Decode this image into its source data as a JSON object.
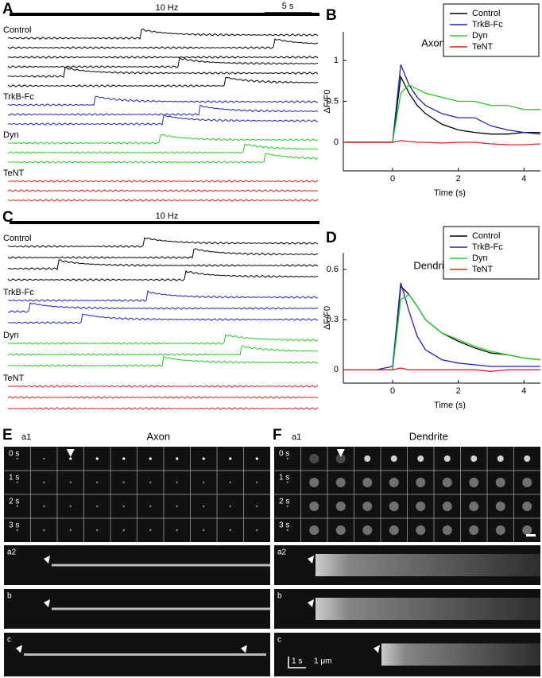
{
  "panels": {
    "A": {
      "label": "A",
      "stim": "10 Hz",
      "scale": "5 s",
      "groups": [
        {
          "name": "Control",
          "color": "#000000",
          "spikes": [
            0.43,
            0.86,
            null,
            0.55,
            0.18,
            0.7
          ]
        },
        {
          "name": "TrkB-Fc",
          "color": "#2020c0",
          "spikes": [
            0.28,
            0.62,
            0.5
          ]
        },
        {
          "name": "Dyn",
          "color": "#20d020",
          "spikes": [
            0.49,
            0.76,
            0.83
          ]
        },
        {
          "name": "TeNT",
          "color": "#e02020",
          "spikes": [
            null,
            null,
            null
          ]
        }
      ]
    },
    "C": {
      "label": "C",
      "stim": "10 Hz",
      "groups": [
        {
          "name": "Control",
          "color": "#000000",
          "spikes": [
            0.44,
            0.6,
            0.16,
            0.57
          ]
        },
        {
          "name": "TrkB-Fc",
          "color": "#2020c0",
          "spikes": [
            0.45,
            0.07,
            0.24
          ]
        },
        {
          "name": "Dyn",
          "color": "#20d020",
          "spikes": [
            0.7,
            0.75,
            0.5
          ]
        },
        {
          "name": "TeNT",
          "color": "#e02020",
          "spikes": [
            null,
            null,
            null
          ]
        }
      ]
    },
    "E": {
      "label": "E",
      "sub": "a1",
      "title": "Axon",
      "rows": [
        "0 s",
        "1 s",
        "2 s",
        "3 s"
      ],
      "strips": [
        "a2",
        "b",
        "c"
      ]
    },
    "F": {
      "label": "F",
      "sub": "a1",
      "title": "Dendrite",
      "rows": [
        "0 s",
        "1 s",
        "2 s",
        "3 s"
      ],
      "strips": [
        "a2",
        "b",
        "c"
      ],
      "time_scale": "1 s",
      "space_scale": "1 μm"
    }
  },
  "chart_data": [
    {
      "type": "line",
      "panel_label": "B",
      "title": "Axon",
      "ylabel": "ΔF/F0",
      "xlabel": "Time (s)",
      "x": [
        -1.5,
        -1,
        -0.5,
        0,
        0.25,
        0.5,
        0.75,
        1,
        1.5,
        2,
        2.5,
        3,
        3.5,
        4,
        4.5
      ],
      "xlim": [
        -1.5,
        4.5
      ],
      "xticks": [
        0,
        2,
        4
      ],
      "ylim": [
        -0.35,
        1.35
      ],
      "yticks": [
        0,
        0.5,
        1
      ],
      "legend": "upper right",
      "series": [
        {
          "name": "Control",
          "color": "#000000",
          "values": [
            0,
            0,
            0,
            0,
            0.8,
            0.6,
            0.45,
            0.35,
            0.22,
            0.15,
            0.12,
            0.1,
            0.1,
            0.12,
            0.12
          ]
        },
        {
          "name": "TrkB-Fc",
          "color": "#2020c0",
          "values": [
            0,
            0,
            0,
            0,
            0.95,
            0.7,
            0.55,
            0.45,
            0.35,
            0.3,
            0.3,
            0.2,
            0.15,
            0.12,
            0.1
          ]
        },
        {
          "name": "Dyn",
          "color": "#20d020",
          "values": [
            0,
            0,
            0,
            0,
            0.6,
            0.7,
            0.65,
            0.6,
            0.55,
            0.5,
            0.5,
            0.45,
            0.45,
            0.4,
            0.4
          ]
        },
        {
          "name": "TeNT",
          "color": "#e02020",
          "values": [
            0,
            0,
            0,
            0,
            0.02,
            0.01,
            0,
            0,
            -0.01,
            0,
            0,
            -0.02,
            -0.03,
            -0.03,
            -0.02
          ]
        }
      ]
    },
    {
      "type": "line",
      "panel_label": "D",
      "title": "Dendrite",
      "ylabel": "ΔF/F0",
      "xlabel": "Time (s)",
      "x": [
        -1.5,
        -1,
        -0.5,
        0,
        0.25,
        0.5,
        0.75,
        1,
        1.5,
        2,
        2.5,
        3,
        3.5,
        4,
        4.5
      ],
      "xlim": [
        -1.5,
        4.5
      ],
      "xticks": [
        0,
        2,
        4
      ],
      "ylim": [
        -0.08,
        0.7
      ],
      "yticks": [
        0,
        0.3,
        0.6
      ],
      "legend": "upper right",
      "series": [
        {
          "name": "Control",
          "color": "#000000",
          "values": [
            0,
            0,
            0,
            0,
            0.5,
            0.45,
            0.38,
            0.3,
            0.22,
            0.17,
            0.13,
            0.1,
            0.09,
            0.07,
            0.06
          ]
        },
        {
          "name": "TrkB-Fc",
          "color": "#2020c0",
          "values": [
            0,
            0,
            0,
            0.02,
            0.52,
            0.35,
            0.2,
            0.12,
            0.06,
            0.04,
            0.03,
            0.02,
            0.02,
            0.02,
            0.02
          ]
        },
        {
          "name": "Dyn",
          "color": "#20d020",
          "values": [
            0,
            0,
            0,
            0,
            0.42,
            0.45,
            0.38,
            0.3,
            0.22,
            0.18,
            0.14,
            0.11,
            0.09,
            0.07,
            0.06
          ]
        },
        {
          "name": "TeNT",
          "color": "#e02020",
          "values": [
            0,
            0,
            0,
            0,
            0.01,
            0,
            0,
            0,
            0,
            0,
            0,
            -0.01,
            0,
            0,
            0
          ]
        }
      ]
    }
  ]
}
